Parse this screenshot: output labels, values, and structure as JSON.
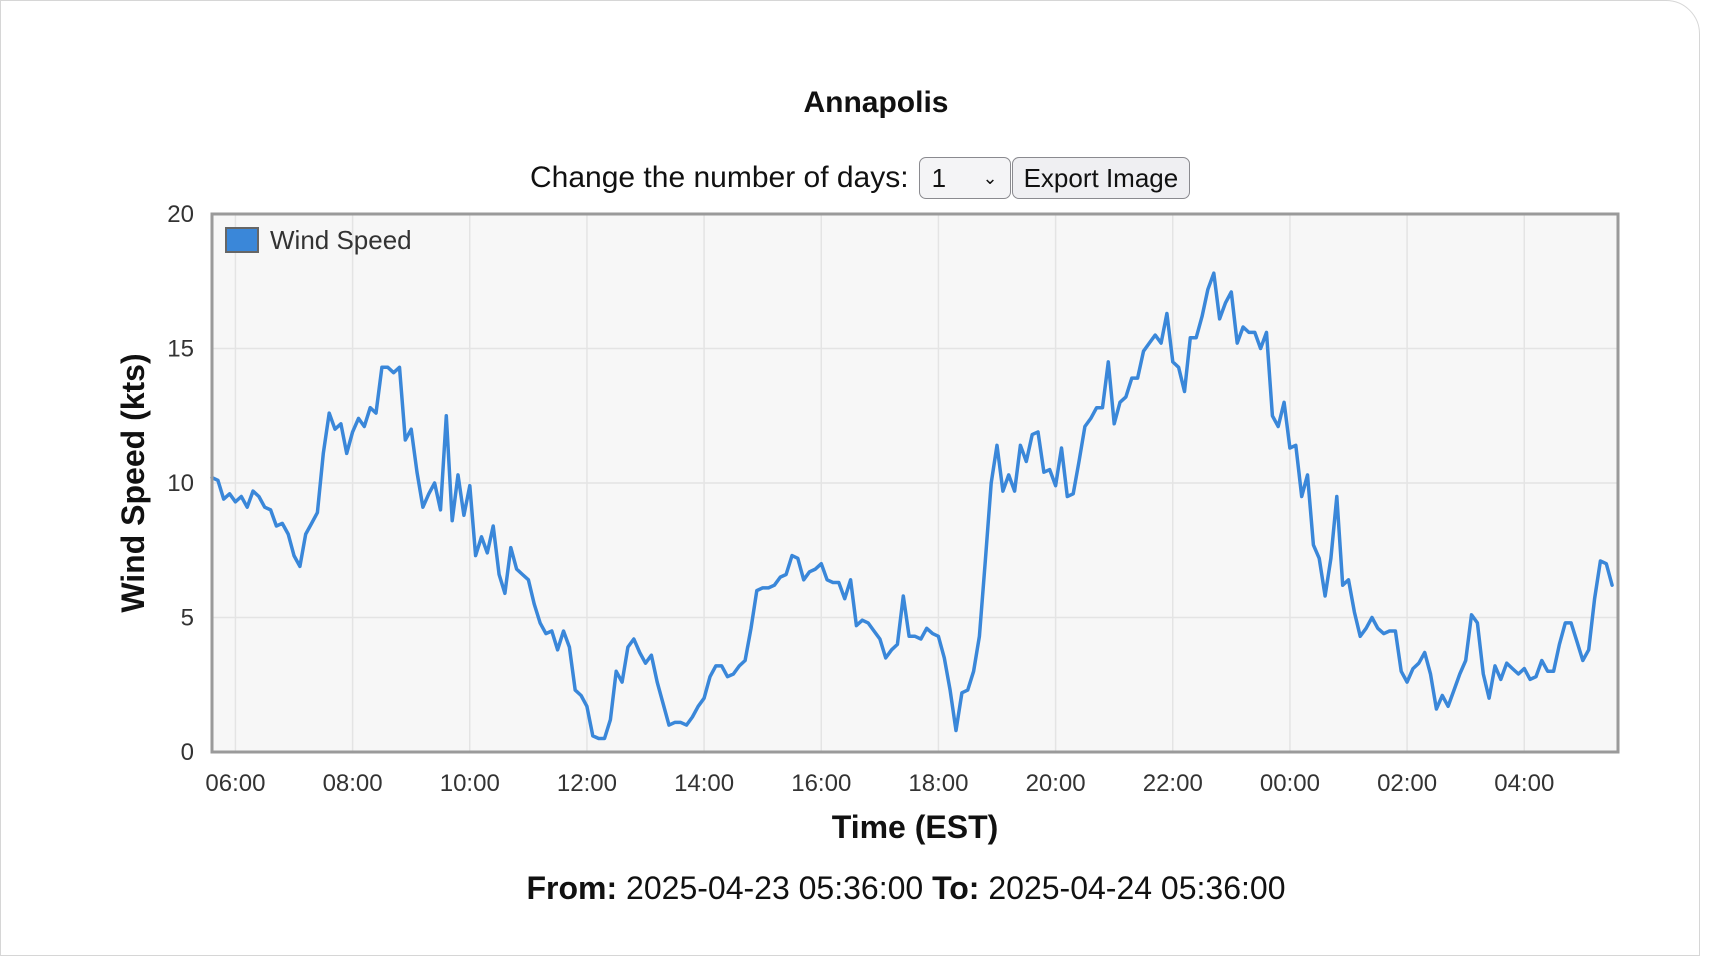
{
  "title": "Annapolis",
  "controls": {
    "days_label": "Change the number of days:",
    "days_selected": "1",
    "export_label": "Export Image"
  },
  "range": {
    "from_label": "From:",
    "from_value": "2025-04-23 05:36:00",
    "to_label": "To:",
    "to_value": "2025-04-24 05:36:00"
  },
  "colors": {
    "series": "#3a87d9",
    "plot_background": "#f7f7f7",
    "plot_border": "#9a9a9a",
    "grid": "#e4e4e4"
  },
  "chart_data": {
    "type": "line",
    "xlabel": "Time (EST)",
    "ylabel": "Wind Speed (kts)",
    "ylim": [
      0,
      20
    ],
    "yticks": [
      0,
      5,
      10,
      15,
      20
    ],
    "xlim": [
      "05:36",
      "05:36 (+1 day)"
    ],
    "xticks": [
      "06:00",
      "08:00",
      "10:00",
      "12:00",
      "14:00",
      "16:00",
      "18:00",
      "20:00",
      "22:00",
      "00:00",
      "02:00",
      "04:00"
    ],
    "grid": true,
    "legend_position": "top-left",
    "series": [
      {
        "name": "Wind Speed",
        "x": [
          "05:36",
          "05:42",
          "05:48",
          "05:54",
          "06:00",
          "06:06",
          "06:12",
          "06:18",
          "06:24",
          "06:30",
          "06:36",
          "06:42",
          "06:48",
          "06:54",
          "07:00",
          "07:06",
          "07:12",
          "07:18",
          "07:24",
          "07:30",
          "07:36",
          "07:42",
          "07:48",
          "07:54",
          "08:00",
          "08:06",
          "08:12",
          "08:18",
          "08:24",
          "08:30",
          "08:36",
          "08:42",
          "08:48",
          "08:54",
          "09:00",
          "09:06",
          "09:12",
          "09:18",
          "09:24",
          "09:30",
          "09:36",
          "09:42",
          "09:48",
          "09:54",
          "10:00",
          "10:06",
          "10:12",
          "10:18",
          "10:24",
          "10:30",
          "10:36",
          "10:42",
          "10:48",
          "10:54",
          "11:00",
          "11:06",
          "11:12",
          "11:18",
          "11:24",
          "11:30",
          "11:36",
          "11:42",
          "11:48",
          "11:54",
          "12:00",
          "12:06",
          "12:12",
          "12:18",
          "12:24",
          "12:30",
          "12:36",
          "12:42",
          "12:48",
          "12:54",
          "13:00",
          "13:06",
          "13:12",
          "13:18",
          "13:24",
          "13:30",
          "13:36",
          "13:42",
          "13:48",
          "13:54",
          "14:00",
          "14:06",
          "14:12",
          "14:18",
          "14:24",
          "14:30",
          "14:36",
          "14:42",
          "14:48",
          "14:54",
          "15:00",
          "15:06",
          "15:12",
          "15:18",
          "15:24",
          "15:30",
          "15:36",
          "15:42",
          "15:48",
          "15:54",
          "16:00",
          "16:06",
          "16:12",
          "16:18",
          "16:24",
          "16:30",
          "16:36",
          "16:42",
          "16:48",
          "16:54",
          "17:00",
          "17:06",
          "17:12",
          "17:18",
          "17:24",
          "17:30",
          "17:36",
          "17:42",
          "17:48",
          "17:54",
          "18:00",
          "18:06",
          "18:12",
          "18:18",
          "18:24",
          "18:30",
          "18:36",
          "18:42",
          "18:48",
          "18:54",
          "19:00",
          "19:06",
          "19:12",
          "19:18",
          "19:24",
          "19:30",
          "19:36",
          "19:42",
          "19:48",
          "19:54",
          "20:00",
          "20:06",
          "20:12",
          "20:18",
          "20:24",
          "20:30",
          "20:36",
          "20:42",
          "20:48",
          "20:54",
          "21:00",
          "21:06",
          "21:12",
          "21:18",
          "21:24",
          "21:30",
          "21:36",
          "21:42",
          "21:48",
          "21:54",
          "22:00",
          "22:06",
          "22:12",
          "22:18",
          "22:24",
          "22:30",
          "22:36",
          "22:42",
          "22:48",
          "22:54",
          "23:00",
          "23:06",
          "23:12",
          "23:18",
          "23:24",
          "23:30",
          "23:36",
          "23:42",
          "23:48",
          "23:54",
          "00:00",
          "00:06",
          "00:12",
          "00:18",
          "00:24",
          "00:30",
          "00:36",
          "00:42",
          "00:48",
          "00:54",
          "01:00",
          "01:06",
          "01:12",
          "01:18",
          "01:24",
          "01:30",
          "01:36",
          "01:42",
          "01:48",
          "01:54",
          "02:00",
          "02:06",
          "02:12",
          "02:18",
          "02:24",
          "02:30",
          "02:36",
          "02:42",
          "02:48",
          "02:54",
          "03:00",
          "03:06",
          "03:12",
          "03:18",
          "03:24",
          "03:30",
          "03:36",
          "03:42",
          "03:48",
          "03:54",
          "04:00",
          "04:06",
          "04:12",
          "04:18",
          "04:24",
          "04:30",
          "04:36",
          "04:42",
          "04:48",
          "04:54",
          "05:00",
          "05:06",
          "05:12",
          "05:18",
          "05:24",
          "05:30"
        ],
        "values": [
          10.2,
          10.1,
          9.4,
          9.6,
          9.3,
          9.5,
          9.1,
          9.7,
          9.5,
          9.1,
          9.0,
          8.4,
          8.5,
          8.1,
          7.3,
          6.9,
          8.1,
          8.5,
          8.9,
          11.1,
          12.6,
          12.0,
          12.2,
          11.1,
          11.9,
          12.4,
          12.1,
          12.8,
          12.6,
          14.3,
          14.3,
          14.1,
          14.3,
          11.6,
          12.0,
          10.4,
          9.1,
          9.6,
          10.0,
          9.0,
          12.5,
          8.6,
          10.3,
          8.8,
          9.9,
          7.3,
          8.0,
          7.4,
          8.4,
          6.6,
          5.9,
          7.6,
          6.8,
          6.6,
          6.4,
          5.5,
          4.8,
          4.4,
          4.5,
          3.8,
          4.5,
          3.9,
          2.3,
          2.1,
          1.7,
          0.6,
          0.5,
          0.5,
          1.2,
          3.0,
          2.6,
          3.9,
          4.2,
          3.7,
          3.3,
          3.6,
          2.6,
          1.8,
          1.0,
          1.1,
          1.1,
          1.0,
          1.3,
          1.7,
          2.0,
          2.8,
          3.2,
          3.2,
          2.8,
          2.9,
          3.2,
          3.4,
          4.6,
          6.0,
          6.1,
          6.1,
          6.2,
          6.5,
          6.6,
          7.3,
          7.2,
          6.4,
          6.7,
          6.8,
          7.0,
          6.4,
          6.3,
          6.3,
          5.7,
          6.4,
          4.7,
          4.9,
          4.8,
          4.5,
          4.2,
          3.5,
          3.8,
          4.0,
          5.8,
          4.3,
          4.3,
          4.2,
          4.6,
          4.4,
          4.3,
          3.5,
          2.3,
          0.8,
          2.2,
          2.3,
          3.0,
          4.3,
          7.1,
          10.0,
          11.4,
          9.7,
          10.3,
          9.7,
          11.4,
          10.8,
          11.8,
          11.9,
          10.4,
          10.5,
          9.9,
          11.3,
          9.5,
          9.6,
          10.8,
          12.1,
          12.4,
          12.8,
          12.8,
          14.5,
          12.2,
          13.0,
          13.2,
          13.9,
          13.9,
          14.9,
          15.2,
          15.5,
          15.2,
          16.3,
          14.5,
          14.3,
          13.4,
          15.4,
          15.4,
          16.2,
          17.2,
          17.8,
          16.1,
          16.7,
          17.1,
          15.2,
          15.8,
          15.6,
          15.6,
          15.0,
          15.6,
          12.5,
          12.1,
          13.0,
          11.3,
          11.4,
          9.5,
          10.3,
          7.7,
          7.2,
          5.8,
          7.2,
          9.5,
          6.2,
          6.4,
          5.2,
          4.3,
          4.6,
          5.0,
          4.6,
          4.4,
          4.5,
          4.5,
          3.0,
          2.6,
          3.1,
          3.3,
          3.7,
          2.9,
          1.6,
          2.1,
          1.7,
          2.3,
          2.9,
          3.4,
          5.1,
          4.8,
          2.9,
          2.0,
          3.2,
          2.7,
          3.3,
          3.1,
          2.9,
          3.1,
          2.7,
          2.8,
          3.4,
          3.0,
          3.0,
          4.0,
          4.8,
          4.8,
          4.1,
          3.4,
          3.8,
          5.7,
          7.1,
          7.0,
          6.2
        ]
      }
    ]
  }
}
